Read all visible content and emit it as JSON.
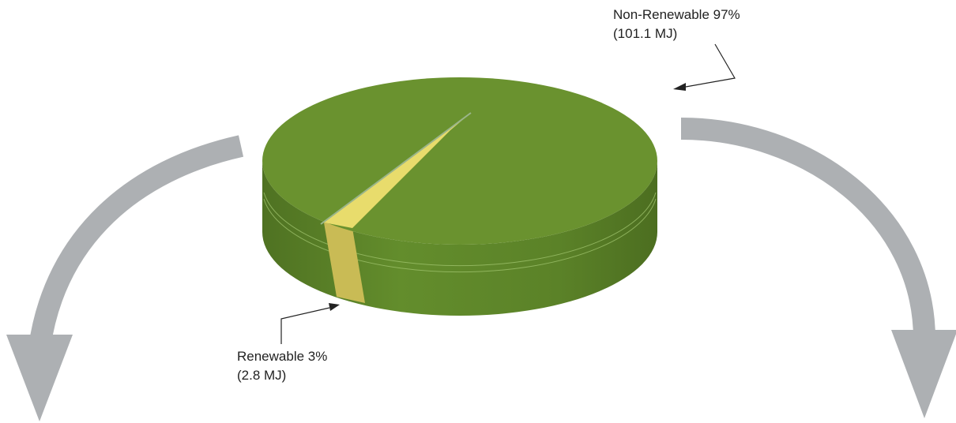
{
  "chart_data": {
    "type": "pie",
    "title": "",
    "style": "3d",
    "slices": [
      {
        "label": "Non-Renewable",
        "percent": "97%",
        "value": "(101.1 MJ)",
        "number": 101.1,
        "color": "#6a922f"
      },
      {
        "label": "Renewable",
        "percent": "3%",
        "value": "(2.8 MJ)",
        "number": 2.8,
        "color": "#e8dc6c"
      }
    ],
    "unit": "MJ",
    "legend": "none"
  },
  "colors": {
    "pie_top": "#6a922f",
    "pie_side": "#5a7f28",
    "renewable_top": "#e8dc6c",
    "renewable_side": "#c9bb55",
    "arrow": "#adb0b3"
  }
}
